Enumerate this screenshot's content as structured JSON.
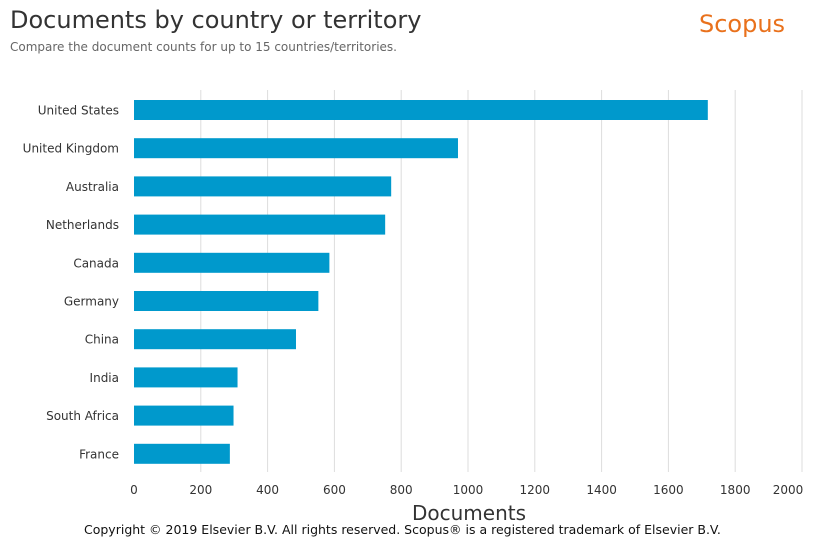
{
  "header": {
    "title": "Documents by country or territory",
    "subtitle": "Compare the document counts for up to 15 countries/territories.",
    "brand": "Scopus"
  },
  "footer": {
    "copyright": "Copyright © 2019 Elsevier B.V. All rights reserved. Scopus® is a registered trademark of Elsevier B.V."
  },
  "colors": {
    "bar": "#0099cc",
    "brand": "#e9711c",
    "grid": "#dddddd"
  },
  "chart_data": {
    "type": "bar",
    "orientation": "horizontal",
    "categories": [
      "United States",
      "United Kingdom",
      "Australia",
      "Netherlands",
      "Canada",
      "Germany",
      "China",
      "India",
      "South Africa",
      "France"
    ],
    "values": [
      1718,
      970,
      770,
      752,
      585,
      552,
      485,
      310,
      298,
      287
    ],
    "xlabel": "Documents",
    "xlim": [
      0,
      2000
    ],
    "xticks": [
      "0",
      "200",
      "400",
      "600",
      "800",
      "1000",
      "1200",
      "1400",
      "1600",
      "1800",
      "2000"
    ],
    "grid": true,
    "legend": "none"
  }
}
